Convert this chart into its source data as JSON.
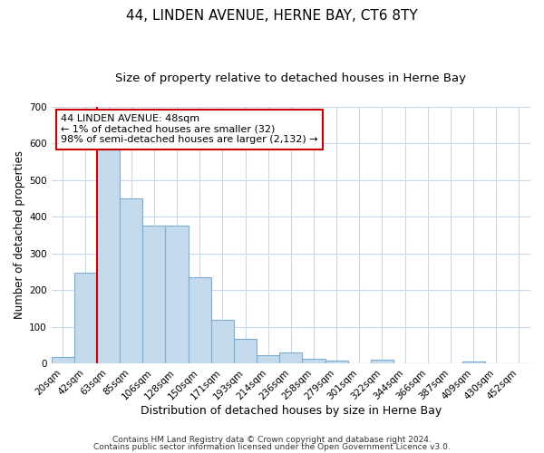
{
  "title": "44, LINDEN AVENUE, HERNE BAY, CT6 8TY",
  "subtitle": "Size of property relative to detached houses in Herne Bay",
  "xlabel": "Distribution of detached houses by size in Herne Bay",
  "ylabel": "Number of detached properties",
  "bar_labels": [
    "20sqm",
    "42sqm",
    "63sqm",
    "85sqm",
    "106sqm",
    "128sqm",
    "150sqm",
    "171sqm",
    "193sqm",
    "214sqm",
    "236sqm",
    "258sqm",
    "279sqm",
    "301sqm",
    "322sqm",
    "344sqm",
    "366sqm",
    "387sqm",
    "409sqm",
    "430sqm",
    "452sqm"
  ],
  "bar_values": [
    18,
    248,
    585,
    450,
    375,
    375,
    235,
    120,
    67,
    22,
    30,
    12,
    8,
    0,
    10,
    0,
    0,
    0,
    5,
    0,
    0
  ],
  "bar_color": "#c5d9ec",
  "bar_edge_color": "#7aadd4",
  "vline_color": "#cc0000",
  "annotation_text": "44 LINDEN AVENUE: 48sqm\n← 1% of detached houses are smaller (32)\n98% of semi-detached houses are larger (2,132) →",
  "annotation_box_color": "#ffffff",
  "annotation_box_edge": "#cc0000",
  "ylim": [
    0,
    700
  ],
  "yticks": [
    0,
    100,
    200,
    300,
    400,
    500,
    600,
    700
  ],
  "footnote1": "Contains HM Land Registry data © Crown copyright and database right 2024.",
  "footnote2": "Contains public sector information licensed under the Open Government Licence v3.0.",
  "fig_background_color": "#ffffff",
  "plot_background": "#ffffff",
  "grid_color": "#c8d8e8",
  "title_fontsize": 11,
  "subtitle_fontsize": 9.5,
  "xlabel_fontsize": 9,
  "ylabel_fontsize": 8.5,
  "tick_fontsize": 7.5,
  "annotation_fontsize": 8,
  "footnote_fontsize": 6.5
}
